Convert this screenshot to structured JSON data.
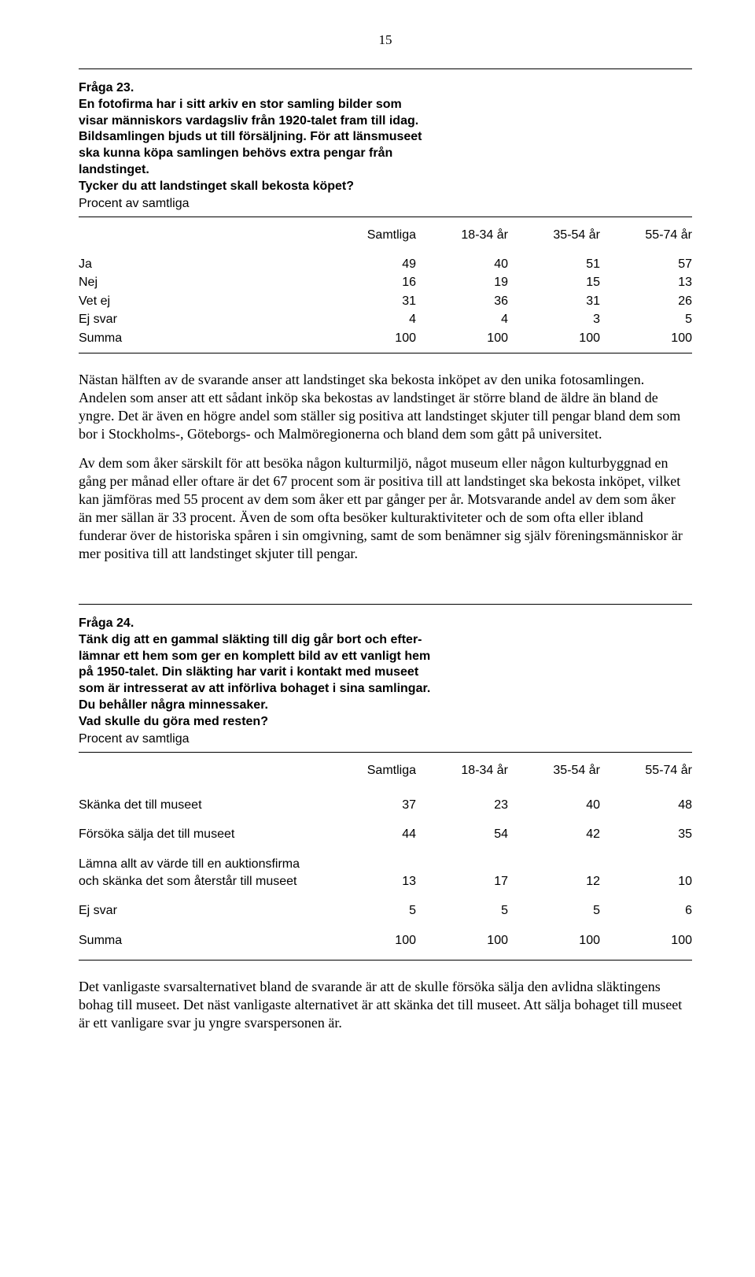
{
  "page_number": "15",
  "q23": {
    "title": "Fråga 23.",
    "lines": [
      "En fotofirma har i sitt arkiv en stor samling bilder som",
      "visar människors vardagsliv från 1920-talet fram till idag.",
      "Bildsamlingen bjuds ut till försäljning. För att länsmuseet",
      "ska kunna köpa samlingen behövs extra pengar från",
      "landstinget.",
      "Tycker du att landstinget skall bekosta köpet?"
    ],
    "sub": "Procent av samtliga",
    "table": {
      "headers": [
        "",
        "Samtliga",
        "18-34 år",
        "35-54 år",
        "55-74 år"
      ],
      "rows": [
        [
          "Ja",
          "49",
          "40",
          "51",
          "57"
        ],
        [
          "Nej",
          "16",
          "19",
          "15",
          "13"
        ],
        [
          "Vet ej",
          "31",
          "36",
          "31",
          "26"
        ],
        [
          "Ej svar",
          "4",
          "4",
          "3",
          "5"
        ],
        [
          "Summa",
          "100",
          "100",
          "100",
          "100"
        ]
      ]
    },
    "para1": "Nästan hälften av de svarande anser att landstinget ska bekosta inköpet av den unika fotosamlingen. Andelen som anser att ett sådant inköp ska bekostas av landstinget är större bland de äldre än bland de yngre. Det är även en högre andel som ställer sig positiva att landstinget skjuter till pengar bland dem som bor i Stockholms-, Göteborgs- och Malmöregionerna och bland dem som gått på universitet.",
    "para2": "Av dem som åker särskilt för att besöka någon kulturmiljö, något museum eller någon kulturbyggnad en gång per månad eller oftare är det 67 procent som är positiva till att landstinget ska bekosta inköpet, vilket kan jämföras med 55 procent av dem som åker ett par gånger per år. Motsvarande andel av dem som åker än mer sällan är 33 procent. Även de som ofta besöker kulturaktiviteter och de som ofta eller ibland funderar över de historiska spåren i sin omgivning, samt de som benämner sig själv föreningsmänniskor är mer positiva till att landstinget skjuter till pengar."
  },
  "q24": {
    "title": "Fråga 24.",
    "lines": [
      "Tänk dig att en gammal släkting till dig går bort och efter-",
      "lämnar ett hem som ger en komplett bild av ett vanligt hem",
      "på 1950-talet. Din släkting har varit i kontakt med museet",
      "som är intresserat av att införliva bohaget i sina samlingar.",
      "Du behåller några minnessaker.",
      "Vad skulle du göra med resten?"
    ],
    "sub": "Procent av samtliga",
    "table": {
      "headers": [
        "",
        "Samtliga",
        "18-34 år",
        "35-54 år",
        "55-74 år"
      ],
      "rows": [
        [
          "Skänka det till museet",
          "37",
          "23",
          "40",
          "48"
        ],
        [
          "Försöka sälja det till museet",
          "44",
          "54",
          "42",
          "35"
        ],
        [
          "Lämna allt av värde till en auktionsfirma\noch skänka det som återstår till museet",
          "13",
          "17",
          "12",
          "10"
        ],
        [
          "Ej svar",
          "5",
          "5",
          "5",
          "6"
        ],
        [
          "Summa",
          "100",
          "100",
          "100",
          "100"
        ]
      ]
    },
    "para1": "Det vanligaste svarsalternativet bland de svarande är att de skulle försöka sälja den avlidna släktingens bohag till museet. Det näst vanligaste alternativet är att skänka det till museet. Att sälja bohaget till museet är ett vanligare svar ju yngre svarspersonen är."
  }
}
